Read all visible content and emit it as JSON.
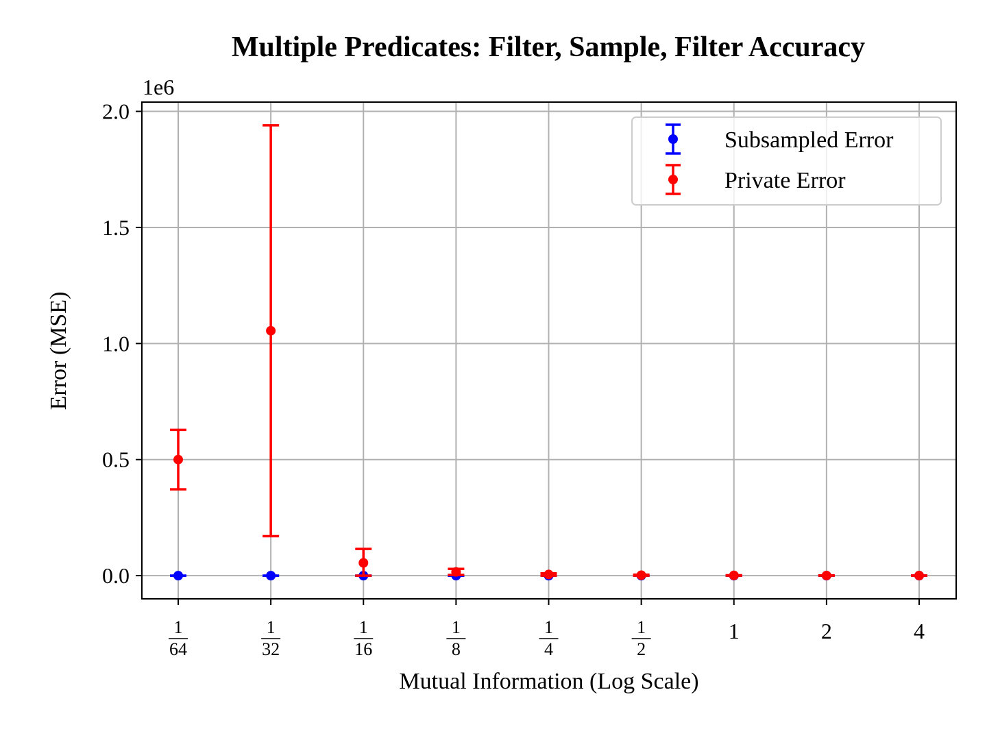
{
  "chart_data": {
    "type": "scatter",
    "title": "Multiple Predicates: Filter, Sample, Filter Accuracy",
    "xlabel": "Mutual Information (Log Scale)",
    "ylabel": "Error (MSE)",
    "y_offset_label": "1e6",
    "x_scale": "log2",
    "x": [
      0.015625,
      0.03125,
      0.0625,
      0.125,
      0.25,
      0.5,
      1,
      2,
      4
    ],
    "x_tick_labels": [
      {
        "num": "1",
        "den": "64"
      },
      {
        "num": "1",
        "den": "32"
      },
      {
        "num": "1",
        "den": "16"
      },
      {
        "num": "1",
        "den": "8"
      },
      {
        "num": "1",
        "den": "4"
      },
      {
        "num": "1",
        "den": "2"
      },
      {
        "text": "1"
      },
      {
        "text": "2"
      },
      {
        "text": "4"
      }
    ],
    "y_ticks": [
      0.0,
      0.5,
      1.0,
      1.5,
      2.0
    ],
    "y_tick_labels": [
      "0.0",
      "0.5",
      "1.0",
      "1.5",
      "2.0"
    ],
    "ylim": [
      -0.1,
      2.04
    ],
    "y_units_multiplier": 1000000,
    "grid": true,
    "legend_position": "upper right",
    "series": [
      {
        "name": "Subsampled Error",
        "color": "#0000ff",
        "values": [
          0,
          0,
          0,
          0,
          0,
          0,
          0,
          0,
          0
        ],
        "err_low": [
          0,
          0,
          0,
          0,
          0,
          0,
          0,
          0,
          0
        ],
        "err_high": [
          0,
          0,
          0,
          0,
          0,
          0,
          0,
          0,
          0
        ]
      },
      {
        "name": "Private Error",
        "color": "#ff0000",
        "values": [
          0.5,
          1.055,
          0.055,
          0.016,
          0.005,
          0.002,
          0.001,
          0.0005,
          0.0003
        ],
        "err_low": [
          0.128,
          0.885,
          0.055,
          0.013,
          0.005,
          0.002,
          0.001,
          0.0005,
          0.0003
        ],
        "err_high": [
          0.128,
          0.885,
          0.06,
          0.013,
          0.005,
          0.002,
          0.001,
          0.0005,
          0.0003
        ]
      }
    ]
  }
}
